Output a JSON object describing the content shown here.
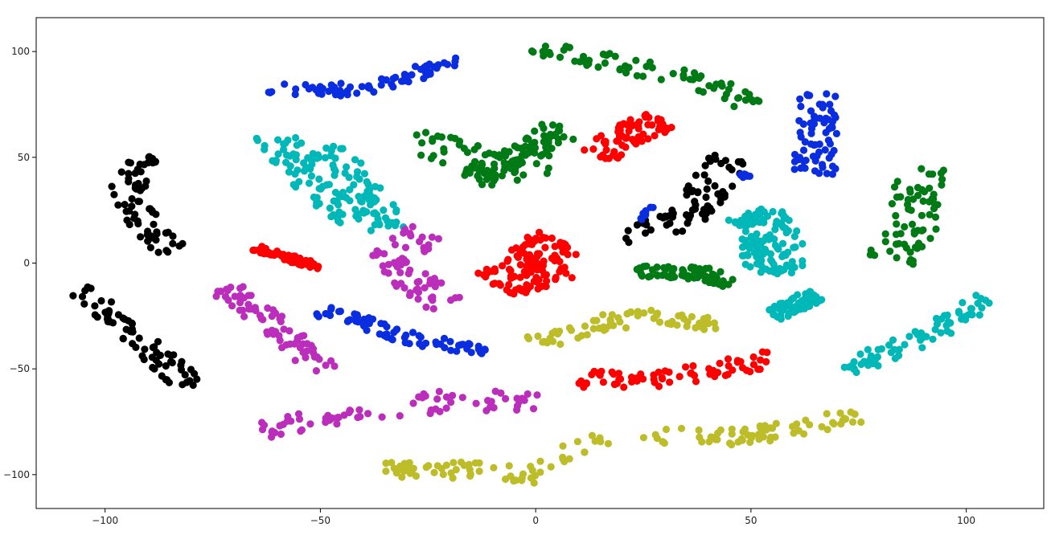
{
  "chart_data": {
    "type": "scatter",
    "title": "",
    "xlabel": "",
    "ylabel": "",
    "xlim": [
      -116,
      118
    ],
    "ylim": [
      -116,
      116
    ],
    "grid": false,
    "legend": "none",
    "x_ticks": [
      -100,
      -50,
      0,
      50,
      100
    ],
    "y_ticks": [
      -100,
      -50,
      0,
      50,
      100
    ],
    "x_tick_labels": [
      "−100",
      "−50",
      "0",
      "50",
      "100"
    ],
    "y_tick_labels": [
      "−100",
      "−50",
      "0",
      "50",
      "100"
    ],
    "colors": {
      "blue": "#0a2de0",
      "green": "#007a14",
      "red": "#ff0000",
      "cyan": "#00b8b8",
      "magenta": "#bb2ebb",
      "black": "#000000",
      "olive": "#bdbd2a"
    },
    "clusters": [
      {
        "color": "blue",
        "shape": "band",
        "path": [
          [
            -62,
            82
          ],
          [
            -40,
            82
          ],
          [
            -30,
            88
          ],
          [
            -18,
            96
          ]
        ],
        "width": 6
      },
      {
        "color": "green",
        "shape": "band",
        "path": [
          [
            0,
            103
          ],
          [
            15,
            96
          ],
          [
            30,
            90
          ],
          [
            45,
            82
          ],
          [
            50,
            75
          ]
        ],
        "width": 8
      },
      {
        "color": "blue",
        "shape": "band",
        "path": [
          [
            65,
            80
          ],
          [
            65,
            42
          ]
        ],
        "width": 10
      },
      {
        "color": "cyan",
        "shape": "arc",
        "path": [
          [
            -60,
            60
          ],
          [
            -55,
            45
          ],
          [
            -45,
            25
          ],
          [
            -40,
            20
          ]
        ],
        "width": 10
      },
      {
        "color": "cyan",
        "shape": "arc",
        "path": [
          [
            -50,
            55
          ],
          [
            -45,
            45
          ],
          [
            -38,
            30
          ],
          [
            -35,
            15
          ]
        ],
        "width": 10
      },
      {
        "color": "black",
        "shape": "band",
        "path": [
          [
            -90,
            50
          ],
          [
            -95,
            35
          ],
          [
            -90,
            15
          ],
          [
            -83,
            5
          ]
        ],
        "width": 8
      },
      {
        "color": "green",
        "shape": "band",
        "path": [
          [
            -30,
            60
          ],
          [
            -15,
            50
          ],
          [
            -5,
            40
          ],
          [
            5,
            60
          ]
        ],
        "width": 12
      },
      {
        "color": "green",
        "shape": "band",
        "path": [
          [
            -15,
            40
          ],
          [
            0,
            55
          ],
          [
            5,
            65
          ]
        ],
        "width": 8
      },
      {
        "color": "red",
        "shape": "band",
        "path": [
          [
            15,
            50
          ],
          [
            20,
            60
          ],
          [
            30,
            68
          ]
        ],
        "width": 10
      },
      {
        "color": "red",
        "shape": "band",
        "path": [
          [
            -65,
            7
          ],
          [
            -50,
            -2
          ]
        ],
        "width": 3
      },
      {
        "color": "magenta",
        "shape": "arc",
        "path": [
          [
            -25,
            15
          ],
          [
            -35,
            0
          ],
          [
            -20,
            -20
          ]
        ],
        "width": 10
      },
      {
        "color": "red",
        "shape": "blob",
        "path": [
          [
            -5,
            10
          ],
          [
            5,
            0
          ],
          [
            -10,
            -10
          ]
        ],
        "width": 16
      },
      {
        "color": "black",
        "shape": "band",
        "path": [
          [
            20,
            12
          ],
          [
            35,
            20
          ],
          [
            45,
            50
          ]
        ],
        "width": 10
      },
      {
        "color": "blue",
        "shape": "small",
        "path": [
          [
            24,
            20
          ],
          [
            28,
            27
          ]
        ],
        "width": 2
      },
      {
        "color": "blue",
        "shape": "small",
        "path": [
          [
            47,
            41
          ],
          [
            50,
            42
          ]
        ],
        "width": 2
      },
      {
        "color": "green",
        "shape": "band",
        "path": [
          [
            24,
            -4
          ],
          [
            40,
            -5
          ],
          [
            45,
            -10
          ]
        ],
        "width": 6
      },
      {
        "color": "cyan",
        "shape": "blob",
        "path": [
          [
            50,
            25
          ],
          [
            55,
            10
          ],
          [
            55,
            -5
          ]
        ],
        "width": 14
      },
      {
        "color": "cyan",
        "shape": "band",
        "path": [
          [
            55,
            -25
          ],
          [
            65,
            -15
          ]
        ],
        "width": 6
      },
      {
        "color": "green",
        "shape": "band",
        "path": [
          [
            82,
            0
          ],
          [
            88,
            20
          ],
          [
            90,
            45
          ]
        ],
        "width": 12
      },
      {
        "color": "black",
        "shape": "band",
        "path": [
          [
            -105,
            -12
          ],
          [
            -95,
            -30
          ],
          [
            -80,
            -58
          ]
        ],
        "width": 8
      },
      {
        "color": "magenta",
        "shape": "band",
        "path": [
          [
            -72,
            -12
          ],
          [
            -60,
            -30
          ],
          [
            -50,
            -50
          ]
        ],
        "width": 8
      },
      {
        "color": "blue",
        "shape": "band",
        "path": [
          [
            -50,
            -22
          ],
          [
            -30,
            -35
          ],
          [
            -10,
            -42
          ]
        ],
        "width": 6
      },
      {
        "color": "olive",
        "shape": "band",
        "path": [
          [
            0,
            -38
          ],
          [
            15,
            -28
          ],
          [
            30,
            -25
          ],
          [
            42,
            -28
          ]
        ],
        "width": 8
      },
      {
        "color": "red",
        "shape": "band",
        "path": [
          [
            10,
            -55
          ],
          [
            30,
            -55
          ],
          [
            55,
            -45
          ]
        ],
        "width": 8
      },
      {
        "color": "cyan",
        "shape": "band",
        "path": [
          [
            72,
            -50
          ],
          [
            90,
            -35
          ],
          [
            105,
            -17
          ]
        ],
        "width": 8
      },
      {
        "color": "magenta",
        "shape": "band",
        "path": [
          [
            -65,
            -78
          ],
          [
            -40,
            -72
          ],
          [
            -20,
            -65
          ],
          [
            0,
            -65
          ]
        ],
        "width": 10
      },
      {
        "color": "olive",
        "shape": "band",
        "path": [
          [
            -35,
            -98
          ],
          [
            -15,
            -98
          ],
          [
            0,
            -100
          ],
          [
            15,
            -82
          ]
        ],
        "width": 8
      },
      {
        "color": "olive",
        "shape": "band",
        "path": [
          [
            25,
            -82
          ],
          [
            50,
            -82
          ],
          [
            75,
            -72
          ]
        ],
        "width": 8
      }
    ]
  }
}
